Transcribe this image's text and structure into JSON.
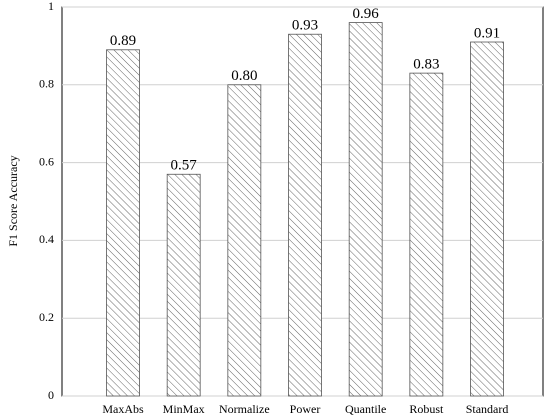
{
  "chart_data": {
    "type": "bar",
    "ylabel": "F1 Score Accuracy",
    "categories": [
      "MaxAbs",
      "MinMax",
      "Normalize",
      "Power",
      "Quantile",
      "Robust",
      "Standard"
    ],
    "values": [
      0.89,
      0.57,
      0.8,
      0.93,
      0.96,
      0.83,
      0.91
    ],
    "value_labels": [
      "0.89",
      "0.57",
      "0.80",
      "0.93",
      "0.96",
      "0.83",
      "0.91"
    ],
    "color": "#555555",
    "ylim": [
      0,
      1
    ],
    "yticks": [
      0,
      0.2,
      0.4,
      0.6,
      0.8,
      1
    ],
    "grid": true
  }
}
